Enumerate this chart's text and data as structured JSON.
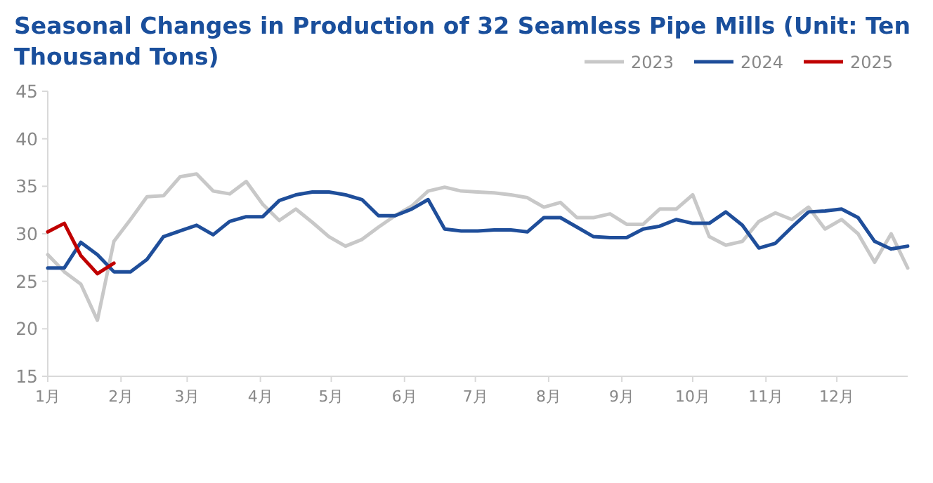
{
  "chart_data": {
    "type": "line",
    "title": "Seasonal Changes in Production of 32 Seamless Pipe Mills (Unit: Ten Thousand Tons)",
    "x": [
      "--01-01",
      "--01-08",
      "--01-15",
      "--01-22",
      "--01-29",
      "--02-05",
      "--02-12",
      "--02-19",
      "--02-26",
      "--03-05",
      "--03-12",
      "--03-19",
      "--03-26",
      "--04-02",
      "--04-09",
      "--04-16",
      "--04-23",
      "--04-30",
      "--05-07",
      "--05-14",
      "--05-21",
      "--05-28",
      "--06-04",
      "--06-11",
      "--06-18",
      "--06-25",
      "--07-02",
      "--07-09",
      "--07-16",
      "--07-23",
      "--07-30",
      "--08-06",
      "--08-13",
      "--08-20",
      "--08-27",
      "--09-03",
      "--09-10",
      "--09-17",
      "--09-24",
      "--10-01",
      "--10-08",
      "--10-15",
      "--10-22",
      "--10-29",
      "--11-05",
      "--11-12",
      "--11-19",
      "--11-26",
      "--12-03",
      "--12-10",
      "--12-17",
      "--12-24",
      "--12-31"
    ],
    "xlim": [
      "--01-01",
      "--12-31"
    ],
    "xticks": [
      {
        "value": "--01-01",
        "label": "1月"
      },
      {
        "value": "--02-01",
        "label": "2月"
      },
      {
        "value": "--03-01",
        "label": "3月"
      },
      {
        "value": "--04-01",
        "label": "4月"
      },
      {
        "value": "--05-01",
        "label": "5月"
      },
      {
        "value": "--06-01",
        "label": "6月"
      },
      {
        "value": "--07-01",
        "label": "7月"
      },
      {
        "value": "--08-01",
        "label": "8月"
      },
      {
        "value": "--09-01",
        "label": "9月"
      },
      {
        "value": "--10-01",
        "label": "10月"
      },
      {
        "value": "--11-01",
        "label": "11月"
      },
      {
        "value": "--12-01",
        "label": "12月"
      }
    ],
    "ylim": [
      15,
      45
    ],
    "yticks": [
      15,
      20,
      25,
      30,
      35,
      40,
      45
    ],
    "grid": false,
    "legend": "top right",
    "marker": "none",
    "line_style": "solid",
    "series": [
      {
        "name": "2023",
        "color": "#c8c8c8",
        "values": [
          27.8,
          26.0,
          24.7,
          20.9,
          29.2,
          31.5,
          33.9,
          34.0,
          36.0,
          36.3,
          34.5,
          34.2,
          35.5,
          33.1,
          31.4,
          32.6,
          31.2,
          29.7,
          28.7,
          29.4,
          30.7,
          31.9,
          32.9,
          34.5,
          34.9,
          34.5,
          34.4,
          34.3,
          34.1,
          33.8,
          32.8,
          33.3,
          31.7,
          31.7,
          32.1,
          31.0,
          31.0,
          32.6,
          32.6,
          34.1,
          29.7,
          28.8,
          29.2,
          31.3,
          32.2,
          31.5,
          32.8,
          30.5,
          31.5,
          30.0,
          27.0,
          30.0,
          26.4
        ]
      },
      {
        "name": "2024",
        "color": "#1f4e9a",
        "values": [
          26.4,
          26.4,
          29.1,
          27.8,
          26.0,
          26.0,
          27.3,
          29.7,
          30.3,
          30.9,
          29.9,
          31.3,
          31.8,
          31.8,
          33.5,
          34.1,
          34.4,
          34.4,
          34.1,
          33.6,
          31.9,
          31.9,
          32.6,
          33.6,
          30.5,
          30.3,
          30.3,
          30.4,
          30.4,
          30.2,
          31.7,
          31.7,
          30.7,
          29.7,
          29.6,
          29.6,
          30.5,
          30.8,
          31.5,
          31.1,
          31.1,
          32.3,
          30.9,
          28.5,
          29.0,
          30.7,
          32.3,
          32.4,
          32.6,
          31.7,
          29.2,
          28.4,
          28.7
        ]
      },
      {
        "name": "2025",
        "color": "#c00000",
        "x": [
          "--01-01",
          "--01-08",
          "--01-15",
          "--01-22",
          "--01-29"
        ],
        "values": [
          30.2,
          31.1,
          27.7,
          25.8,
          26.9
        ]
      }
    ]
  }
}
